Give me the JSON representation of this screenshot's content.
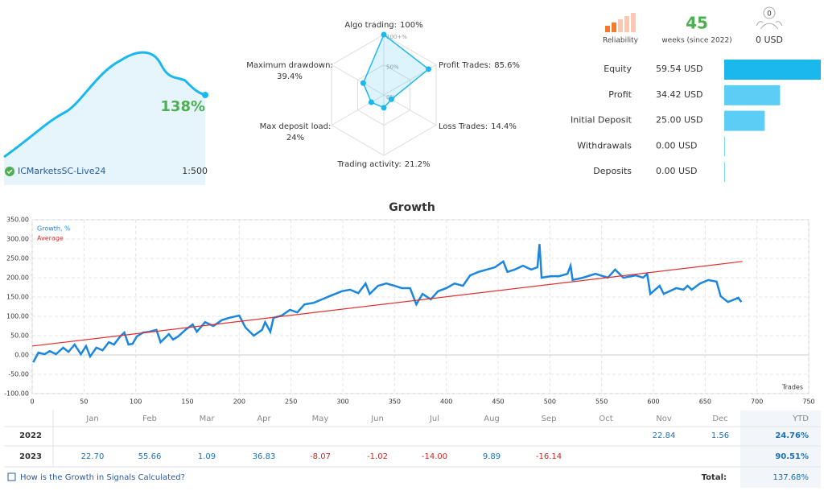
{
  "header": {
    "growth": "138%",
    "server": "ICMarketsSC-Live24",
    "leverage": "1:500",
    "reliability": "Reliability",
    "weeks": "45",
    "weeks_label": "weeks (since 2022)",
    "subscribers": "0",
    "subscribers_funds": "0 USD"
  },
  "chart_data": [
    {
      "type": "radar",
      "color": "#1ab8ec",
      "axes": [
        {
          "name": "Algo trading:",
          "value": 100,
          "value_label": "100%"
        },
        {
          "name": "Profit Trades:",
          "value": 85.6,
          "value_label": "85.6%"
        },
        {
          "name": "Loss Trades:",
          "value": 14.4,
          "value_label": "14.4%"
        },
        {
          "name": "Trading activity:",
          "value": 21.2,
          "value_label": "21.2%"
        },
        {
          "name": "Max deposit load:",
          "value": 24,
          "value_label": "24%"
        },
        {
          "name": "Maximum drawdown:",
          "value": 39.4,
          "value_label": "39.4%"
        }
      ],
      "rlim": [
        0,
        100
      ],
      "rticks": [
        {
          "value": 0,
          "label": "0%"
        },
        {
          "value": 50,
          "label": "50%"
        },
        {
          "value": 100,
          "label": "100+%"
        }
      ]
    },
    {
      "type": "hbar",
      "categories": [
        "Equity",
        "Profit",
        "Initial Deposit",
        "Withdrawals",
        "Deposits"
      ],
      "values": [
        59.54,
        34.42,
        25.0,
        0.0,
        0.0
      ],
      "value_labels": [
        "59.54 USD",
        "34.42 USD",
        "25.00 USD",
        "0.00 USD",
        "0.00 USD"
      ],
      "colors": [
        "#1ab8ec",
        "#5ccdf4",
        "#5ccdf4",
        "#5ccdf4",
        "#5ccdf4"
      ]
    },
    {
      "type": "line",
      "title": "Growth",
      "xlabel": "Trades",
      "grid": true,
      "legend": "top-left",
      "xlim": [
        0,
        750
      ],
      "xticks": [
        0,
        50,
        100,
        150,
        200,
        250,
        300,
        350,
        400,
        450,
        500,
        550,
        600,
        650,
        700,
        750
      ],
      "ylim": [
        -100,
        350
      ],
      "yticks": [
        {
          "value": -100,
          "label": "-100.00"
        },
        {
          "value": -50,
          "label": "-50.00"
        },
        {
          "value": 0,
          "label": "0.00"
        },
        {
          "value": 50,
          "label": "50.00"
        },
        {
          "value": 100,
          "label": "100.00"
        },
        {
          "value": 150,
          "label": "150.00"
        },
        {
          "value": 200,
          "label": "200.00"
        },
        {
          "value": 250,
          "label": "250.00"
        },
        {
          "value": 300,
          "label": "300.00"
        },
        {
          "value": 350,
          "label": "350.00"
        }
      ],
      "series": [
        {
          "name": "Growth, %",
          "color": "#1a86dd",
          "x": [
            1,
            6,
            12,
            17,
            23,
            30,
            35,
            41,
            47,
            52,
            56,
            62,
            68,
            74,
            79,
            85,
            89,
            93,
            97,
            101,
            107,
            113,
            120,
            124,
            132,
            136,
            141,
            148,
            155,
            159,
            167,
            175,
            183,
            190,
            200,
            206,
            214,
            222,
            225,
            230,
            233,
            241,
            249,
            256,
            263,
            272,
            280,
            287,
            299,
            307,
            315,
            322,
            326,
            334,
            342,
            350,
            357,
            365,
            371,
            377,
            385,
            392,
            400,
            408,
            416,
            423,
            431,
            439,
            447,
            455,
            459,
            466,
            474,
            482,
            488,
            490,
            492,
            501,
            509,
            517,
            520,
            522,
            532,
            544,
            556,
            563,
            571,
            583,
            590,
            594,
            597,
            606,
            610,
            622,
            629,
            633,
            637,
            645,
            653,
            661,
            665,
            672,
            682,
            685
          ],
          "values": [
            -19,
            6,
            2,
            10,
            2,
            19,
            8,
            27,
            2,
            23,
            -4,
            19,
            12,
            33,
            27,
            48,
            58,
            27,
            29,
            48,
            58,
            60,
            65,
            33,
            54,
            40,
            48,
            65,
            79,
            60,
            85,
            75,
            90,
            96,
            102,
            71,
            50,
            65,
            85,
            60,
            96,
            102,
            117,
            110,
            131,
            135,
            144,
            152,
            165,
            169,
            160,
            185,
            158,
            179,
            185,
            179,
            173,
            173,
            131,
            158,
            144,
            165,
            173,
            185,
            179,
            206,
            215,
            221,
            227,
            242,
            215,
            221,
            231,
            221,
            227,
            287,
            200,
            204,
            204,
            210,
            231,
            194,
            200,
            210,
            200,
            221,
            200,
            206,
            200,
            210,
            158,
            179,
            158,
            173,
            169,
            179,
            169,
            185,
            194,
            190,
            152,
            137,
            148,
            137
          ]
        },
        {
          "name": "Average",
          "color": "#e03030",
          "x": [
            0,
            686
          ],
          "values": [
            23,
            242
          ]
        }
      ]
    }
  ],
  "table": {
    "months": [
      "Jan",
      "Feb",
      "Mar",
      "Apr",
      "May",
      "Jun",
      "Jul",
      "Aug",
      "Sep",
      "Oct",
      "Nov",
      "Dec"
    ],
    "ytd": "YTD",
    "rows": [
      {
        "year": "2022",
        "cells": [
          null,
          null,
          null,
          null,
          null,
          null,
          null,
          null,
          null,
          null,
          "22.84",
          "1.56"
        ],
        "ytd": "24.76%"
      },
      {
        "year": "2023",
        "cells": [
          "22.70",
          "55.66",
          "1.09",
          "36.83",
          "-8.07",
          "-1.02",
          "-14.00",
          "9.89",
          "-16.14",
          null,
          null,
          null
        ],
        "ytd": "90.51%"
      }
    ],
    "total_label": "Total:",
    "total": "137.68%"
  },
  "link": "How is the Growth in Signals Calculated?"
}
